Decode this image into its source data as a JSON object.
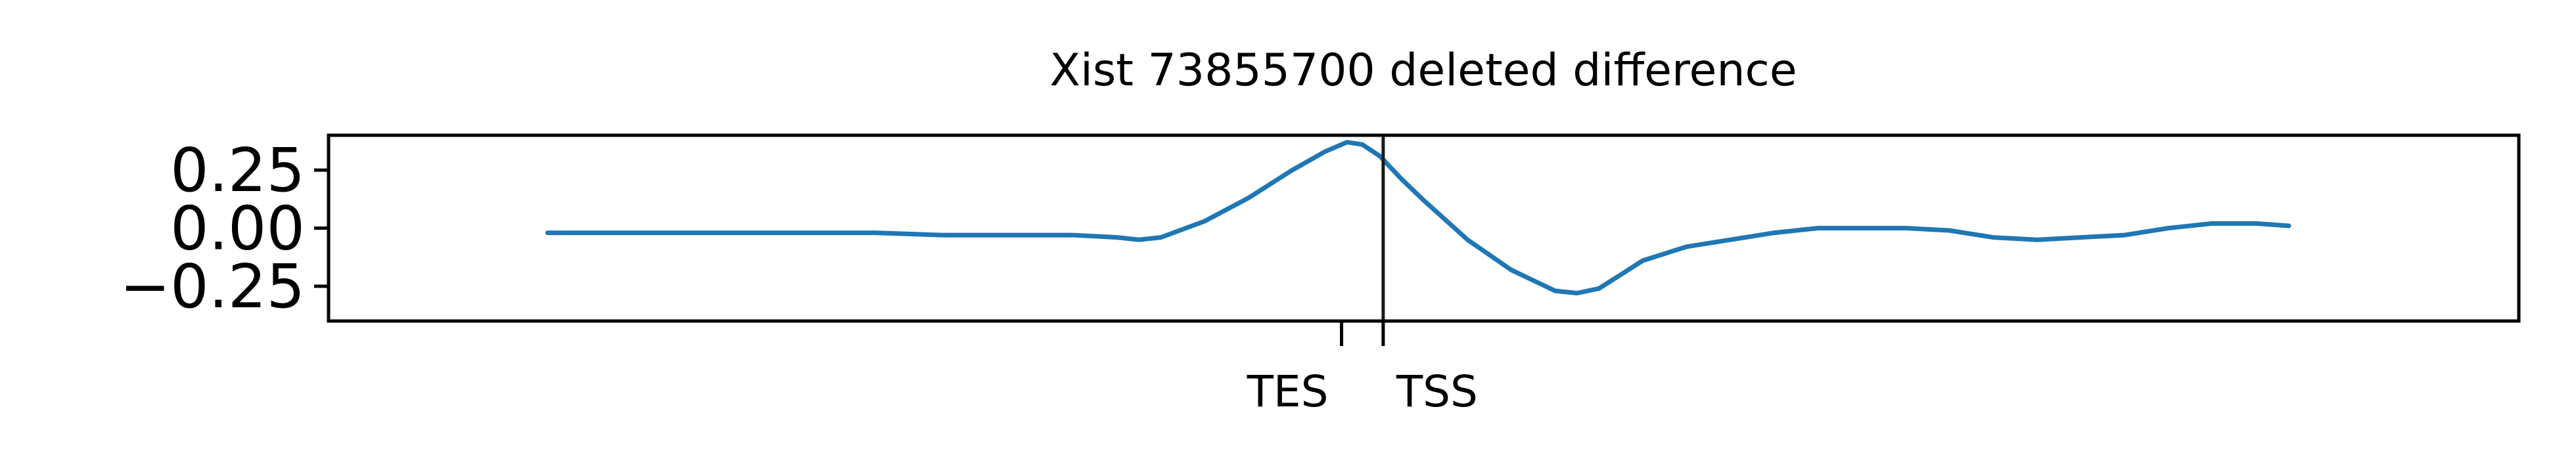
{
  "chart_data": {
    "type": "line",
    "title": "Xist 73855700 deleted difference",
    "xlabel": "",
    "ylabel": "",
    "ylim": [
      -0.4,
      0.4
    ],
    "yticks": [
      {
        "value": 0.25,
        "label": "0.25"
      },
      {
        "value": 0.0,
        "label": "0.00"
      },
      {
        "value": -0.25,
        "label": "−0.25"
      }
    ],
    "xticks": [
      {
        "label": "TES",
        "value": 0.4625
      },
      {
        "label": "TSS",
        "value": 0.4815
      }
    ],
    "vline_x": 0.4815,
    "grid": false,
    "legend": "none",
    "series": [
      {
        "color": "#1f77b4",
        "x": [
          0.1,
          0.15,
          0.2,
          0.22,
          0.25,
          0.28,
          0.31,
          0.34,
          0.36,
          0.37,
          0.38,
          0.4,
          0.42,
          0.44,
          0.455,
          0.465,
          0.472,
          0.48,
          0.49,
          0.5,
          0.52,
          0.54,
          0.56,
          0.57,
          0.58,
          0.59,
          0.6,
          0.62,
          0.64,
          0.66,
          0.68,
          0.7,
          0.72,
          0.74,
          0.76,
          0.78,
          0.8,
          0.82,
          0.84,
          0.86,
          0.88,
          0.895
        ],
        "y": [
          -0.02,
          -0.02,
          -0.02,
          -0.02,
          -0.02,
          -0.03,
          -0.03,
          -0.03,
          -0.04,
          -0.05,
          -0.04,
          0.03,
          0.13,
          0.25,
          0.33,
          0.37,
          0.36,
          0.31,
          0.21,
          0.12,
          -0.05,
          -0.18,
          -0.27,
          -0.28,
          -0.26,
          -0.2,
          -0.14,
          -0.08,
          -0.05,
          -0.02,
          0.0,
          0.0,
          0.0,
          -0.01,
          -0.04,
          -0.05,
          -0.04,
          -0.03,
          0.0,
          0.02,
          0.02,
          0.01
        ]
      }
    ]
  }
}
